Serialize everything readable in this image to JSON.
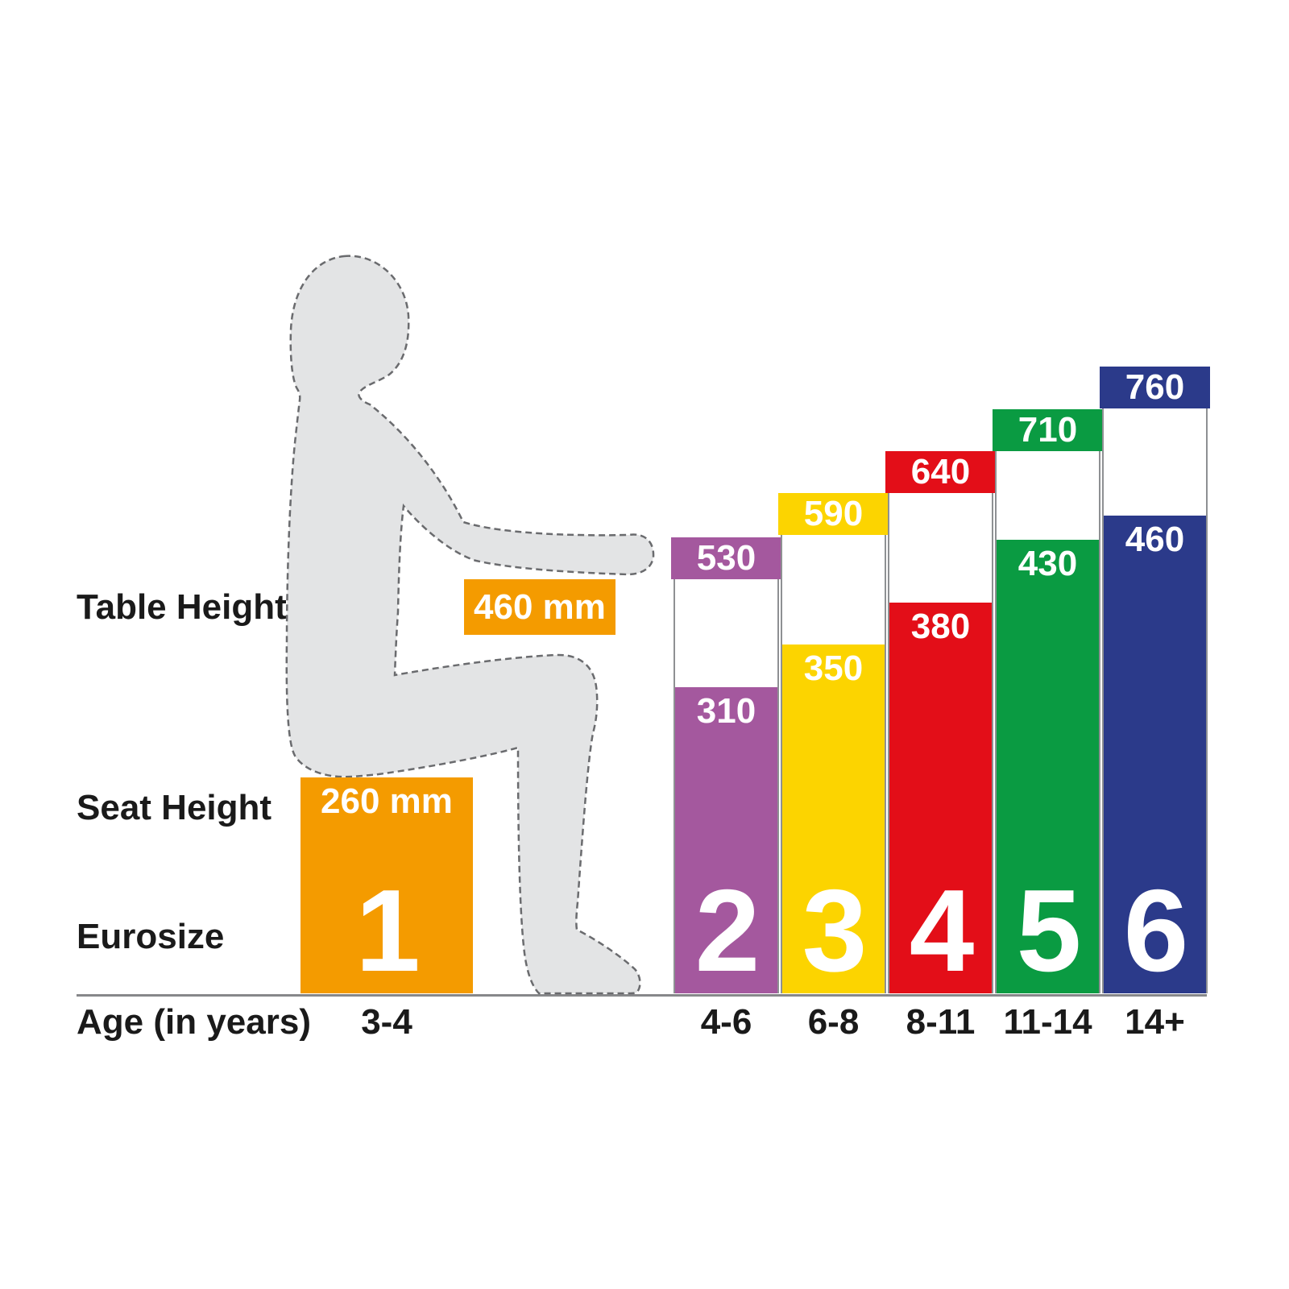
{
  "row_labels": {
    "table_height": "Table Height",
    "seat_height": "Seat Height",
    "eurosize": "Eurosize",
    "age": "Age (in years)"
  },
  "size1": {
    "table_value": "460 mm",
    "seat_value": "260 mm",
    "eurosize": "1",
    "age": "3-4",
    "color": "#F49B00"
  },
  "columns": [
    {
      "eurosize": "2",
      "table_value": "530",
      "seat_value": "310",
      "age": "4-6",
      "color": "#A4589E"
    },
    {
      "eurosize": "3",
      "table_value": "590",
      "seat_value": "350",
      "age": "6-8",
      "color": "#FCD400"
    },
    {
      "eurosize": "4",
      "table_value": "640",
      "seat_value": "380",
      "age": "8-11",
      "color": "#E30E18"
    },
    {
      "eurosize": "5",
      "table_value": "710",
      "seat_value": "430",
      "age": "11-14",
      "color": "#0A9B42"
    },
    {
      "eurosize": "6",
      "table_value": "760",
      "seat_value": "460",
      "age": "14+",
      "color": "#2B3A8A"
    }
  ],
  "figure": {
    "description": "seated-child-silhouette",
    "fill": "#E3E4E5",
    "outline": "#6A6B6E"
  },
  "chart_data": {
    "type": "bar",
    "categories": [
      "3-4",
      "4-6",
      "6-8",
      "8-11",
      "11-14",
      "14+"
    ],
    "series": [
      {
        "name": "Table Height (mm)",
        "values": [
          460,
          530,
          590,
          640,
          710,
          760
        ]
      },
      {
        "name": "Seat Height (mm)",
        "values": [
          260,
          310,
          350,
          380,
          430,
          460
        ]
      }
    ],
    "eurosizes": [
      "1",
      "2",
      "3",
      "4",
      "5",
      "6"
    ],
    "unit": "mm",
    "bar_colors": [
      "#F49B00",
      "#A4589E",
      "#FCD400",
      "#E30E18",
      "#0A9B42",
      "#2B3A8A"
    ],
    "xlabel": "Age (in years)",
    "ylabel": "",
    "legend": "none",
    "grid": false,
    "notes": "Each column: total bar height = table height, lower colored segment = seat height, Eurosize number at base. Size 1 shown as orange seat block (260 mm) with separate 460 mm table-height tag beside seated child silhouette."
  }
}
